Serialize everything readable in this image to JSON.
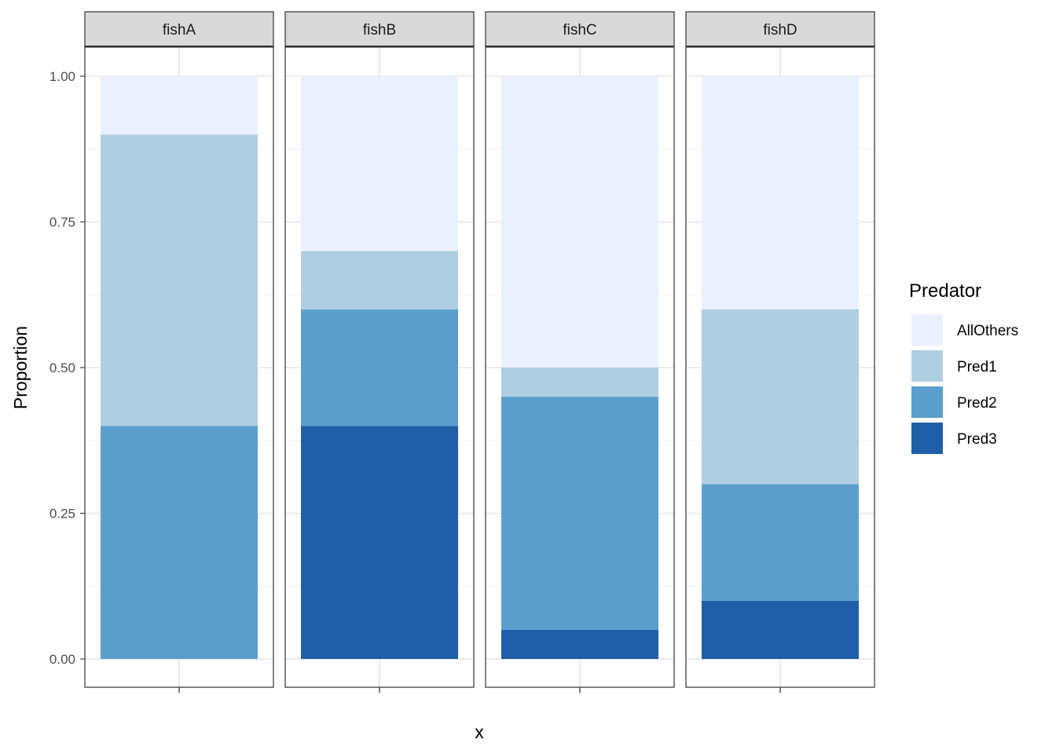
{
  "chart_data": {
    "type": "bar",
    "stacked": true,
    "facet": "panel",
    "panels": [
      "fishA",
      "fishB",
      "fishC",
      "fishD"
    ],
    "xlabel": "x",
    "ylabel": "Proportion",
    "ylim": [
      0,
      1
    ],
    "yticks": [
      "0.00",
      "0.25",
      "0.50",
      "0.75",
      "1.00"
    ],
    "grid": true,
    "legend": {
      "title": "Predator",
      "placement": "right"
    },
    "series": [
      {
        "name": "Pred3",
        "color": "#1f5fa8",
        "values": [
          0,
          0.4,
          0.05,
          0.1
        ]
      },
      {
        "name": "Pred2",
        "color": "#5a9fcc",
        "values": [
          0.4,
          0.2,
          0.4,
          0.2
        ]
      },
      {
        "name": "Pred1",
        "color": "#b0cee2",
        "values": [
          0.5,
          0.1,
          0.05,
          0.3
        ]
      },
      {
        "name": "AllOthers",
        "color": "#eaf0fd",
        "values": [
          0.1,
          0.3,
          0.5,
          0.4
        ]
      }
    ],
    "legend_order": [
      "AllOthers",
      "Pred1",
      "Pred2",
      "Pred3"
    ]
  }
}
